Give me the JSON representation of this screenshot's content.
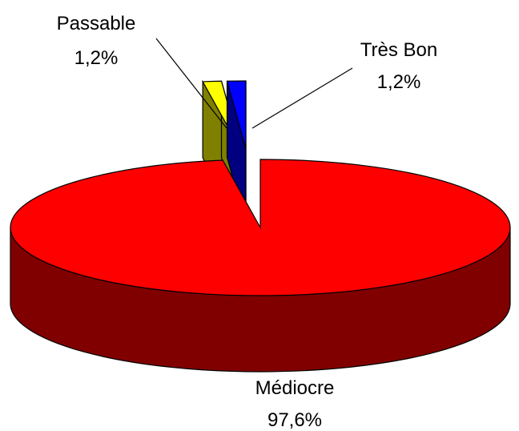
{
  "chart_data": {
    "type": "pie",
    "style": "3d-exploded",
    "legend": "none",
    "slices": [
      {
        "label": "Médiocre",
        "value": 97.6,
        "value_label": "97,6%",
        "color": "#ff0000",
        "side_color": "#800000"
      },
      {
        "label": "Passable",
        "value": 1.2,
        "value_label": "1,2%",
        "color": "#ffff00",
        "side_color": "#808000"
      },
      {
        "label": "Très Bon",
        "value": 1.2,
        "value_label": "1,2%",
        "color": "#0000ff",
        "side_color": "#000080"
      }
    ]
  }
}
